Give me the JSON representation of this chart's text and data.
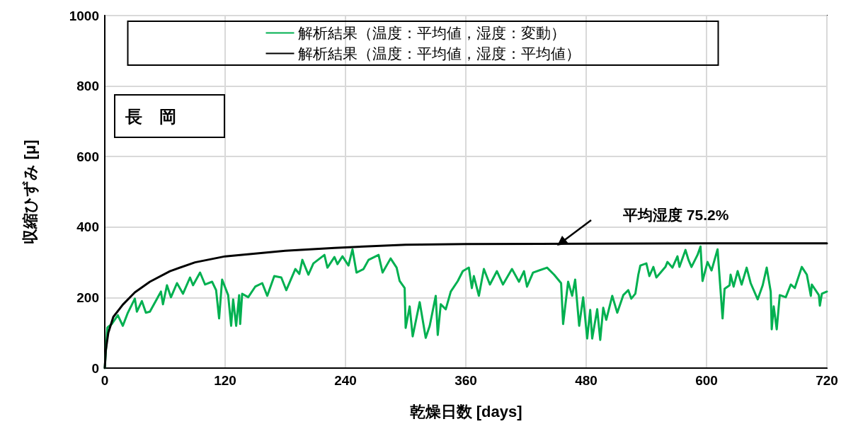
{
  "chart_data": {
    "type": "line",
    "xlabel": "乾燥日数 [days]",
    "ylabel": "収縮ひずみ [μ]",
    "xlim": [
      0,
      720
    ],
    "xticks": [
      0,
      120,
      240,
      360,
      480,
      600,
      720
    ],
    "ylim": [
      0,
      1000
    ],
    "yticks": [
      0,
      200,
      400,
      600,
      800,
      1000
    ],
    "grid": true,
    "legend": "top",
    "marker": "none",
    "line_style": "solid",
    "annotations": [
      "長　岡",
      "平均湿度 75.2%"
    ],
    "series": [
      {
        "name": "解析結果（温度：平均値，湿度：変動）",
        "color": "#00b050",
        "x": [
          0,
          2.6,
          7,
          13,
          18,
          23,
          30,
          32,
          37,
          41,
          45,
          56,
          58,
          62,
          66,
          72,
          78,
          85,
          88,
          95,
          100,
          107,
          111,
          114,
          117,
          123,
          126,
          128,
          131,
          134,
          135,
          137,
          143,
          150,
          157,
          162,
          169,
          176,
          181,
          190,
          194,
          197,
          203,
          208,
          219,
          222,
          229,
          232,
          237,
          243,
          247,
          251,
          258,
          263,
          273,
          277,
          285,
          291,
          294,
          299,
          300,
          304,
          307,
          314,
          320,
          324,
          330,
          332,
          335,
          340,
          345,
          352,
          357,
          363,
          366,
          368,
          373,
          378,
          384,
          391,
          397,
          406,
          413,
          418,
          421,
          427,
          441,
          448,
          455,
          457,
          462,
          466,
          469,
          473,
          477,
          481,
          484,
          486,
          491,
          494,
          497,
          500,
          506,
          511,
          517,
          522,
          525,
          529,
          532,
          534,
          540,
          543,
          547,
          550,
          559,
          561,
          566,
          571,
          573,
          579,
          582,
          585,
          591,
          594,
          596,
          601,
          605,
          611,
          616,
          618,
          623,
          624,
          627,
          631,
          635,
          640,
          644,
          651,
          656,
          660,
          664,
          665,
          667,
          670,
          673,
          679,
          684,
          688,
          695,
          700,
          704,
          705,
          712,
          713,
          715,
          720
        ],
        "values": [
          0,
          115,
          125,
          150,
          120,
          157,
          197,
          160,
          190,
          157,
          160,
          217,
          181,
          235,
          201,
          241,
          211,
          257,
          235,
          271,
          237,
          245,
          221,
          141,
          251,
          207,
          120,
          195,
          120,
          207,
          125,
          211,
          201,
          231,
          241,
          205,
          261,
          257,
          221,
          281,
          267,
          307,
          265,
          297,
          321,
          285,
          315,
          295,
          317,
          291,
          337,
          271,
          281,
          307,
          321,
          271,
          311,
          285,
          247,
          227,
          114,
          175,
          90,
          187,
          86,
          120,
          205,
          94,
          181,
          167,
          217,
          247,
          275,
          285,
          227,
          261,
          205,
          281,
          237,
          275,
          237,
          281,
          245,
          275,
          231,
          271,
          285,
          265,
          241,
          125,
          245,
          205,
          251,
          120,
          201,
          84,
          165,
          84,
          167,
          80,
          171,
          137,
          205,
          157,
          207,
          221,
          197,
          211,
          265,
          291,
          297,
          261,
          287,
          257,
          287,
          301,
          285,
          317,
          287,
          335,
          307,
          287,
          321,
          345,
          247,
          301,
          277,
          337,
          141,
          225,
          235,
          265,
          231,
          275,
          237,
          285,
          241,
          195,
          235,
          285,
          217,
          110,
          175,
          110,
          207,
          201,
          237,
          227,
          287,
          265,
          205,
          237,
          207,
          177,
          211,
          217
        ]
      },
      {
        "name": "解析結果（温度：平均値，湿度：平均値）",
        "color": "#000000",
        "x": [
          0,
          1,
          3.5,
          8.5,
          18,
          30,
          45,
          65,
          90,
          120,
          180,
          229,
          300,
          360,
          480,
          600,
          720
        ],
        "values": [
          0,
          50,
          100,
          145,
          180,
          215,
          245,
          275,
          300,
          317,
          333,
          341,
          350,
          352,
          353,
          354,
          354
        ]
      }
    ]
  }
}
